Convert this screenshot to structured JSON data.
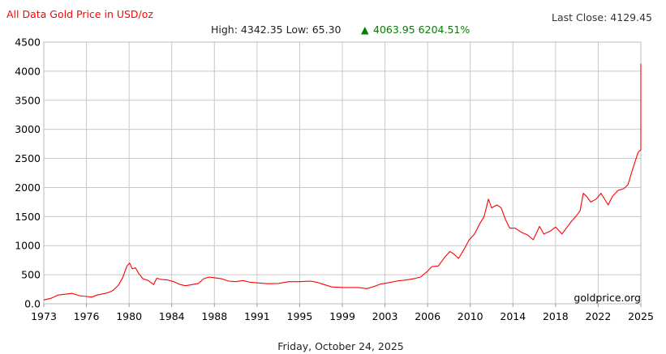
{
  "header": {
    "title": "All Data Gold Price in USD/oz",
    "last_close": "Last Close: 4129.45",
    "high_low": "High: 4342.35 Low: 65.30",
    "change_arrow": "▲",
    "change": "4063.95 6204.51%",
    "title_color": "#ff0000",
    "change_color": "#008000"
  },
  "footer": {
    "date": "Friday, October 24, 2025",
    "watermark": "goldprice.org"
  },
  "chart_data": {
    "type": "line",
    "title": "All Data Gold Price in USD/oz",
    "xlabel": "",
    "ylabel": "",
    "x_tick_labels": [
      "1973",
      "1976",
      "1980",
      "1984",
      "1988",
      "1991",
      "1995",
      "1999",
      "2003",
      "2006",
      "2010",
      "2014",
      "2018",
      "2022",
      "2025"
    ],
    "y_tick_labels": [
      "0.0",
      "500",
      "1000",
      "1500",
      "2000",
      "2500",
      "3000",
      "3500",
      "4000",
      "4500"
    ],
    "ylim": [
      0,
      4500
    ],
    "xlim": [
      1973,
      2025
    ],
    "grid": true,
    "series": [
      {
        "color": "#ff0000",
        "x": [
          1973.0,
          1973.5,
          1974.0,
          1974.5,
          1975.0,
          1975.5,
          1976.0,
          1976.5,
          1977.0,
          1977.5,
          1978.0,
          1978.5,
          1979.0,
          1979.4,
          1979.8,
          1980.05,
          1980.3,
          1980.6,
          1980.9,
          1981.3,
          1981.8,
          1982.3,
          1982.6,
          1983.0,
          1983.6,
          1984.2,
          1984.8,
          1985.3,
          1985.9,
          1986.5,
          1987.0,
          1987.5,
          1987.9,
          1988.5,
          1989.0,
          1989.5,
          1990.0,
          1990.5,
          1991.0,
          1992.0,
          1993.0,
          1994.0,
          1995.0,
          1996.0,
          1996.6,
          1997.3,
          1998.0,
          1999.0,
          1999.8,
          2000.5,
          2001.3,
          2002.0,
          2002.6,
          2003.2,
          2003.8,
          2004.5,
          2005.0,
          2005.5,
          2006.0,
          2006.4,
          2007.0,
          2007.6,
          2008.1,
          2008.5,
          2008.9,
          2009.4,
          2009.9,
          2010.4,
          2010.9,
          2011.3,
          2011.7,
          2012.0,
          2012.5,
          2012.9,
          2013.3,
          2013.7,
          2014.2,
          2014.8,
          2015.4,
          2015.9,
          2016.5,
          2016.9,
          2017.5,
          2018.0,
          2018.6,
          2019.0,
          2019.5,
          2019.9,
          2020.3,
          2020.6,
          2020.9,
          2021.3,
          2021.8,
          2022.2,
          2022.7,
          2023.0,
          2023.4,
          2023.8,
          2024.1,
          2024.4,
          2024.8,
          2025.0,
          2025.3,
          2025.6,
          2025.8,
          2025.9,
          2026.0
        ],
        "values": [
          65,
          95,
          150,
          165,
          180,
          140,
          125,
          115,
          150,
          170,
          190,
          230,
          320,
          450,
          650,
          700,
          600,
          620,
          520,
          430,
          400,
          330,
          440,
          420,
          410,
          380,
          330,
          310,
          330,
          350,
          430,
          460,
          450,
          430,
          390,
          380,
          400,
          370,
          360,
          345,
          350,
          380,
          380,
          390,
          370,
          330,
          290,
          280,
          280,
          280,
          260,
          300,
          340,
          360,
          390,
          410,
          430,
          460,
          560,
          640,
          650,
          800,
          900,
          850,
          780,
          930,
          1100,
          1200,
          1380,
          1500,
          1800,
          1650,
          1700,
          1650,
          1450,
          1300,
          1300,
          1230,
          1180,
          1100,
          1330,
          1200,
          1250,
          1320,
          1200,
          1300,
          1420,
          1500,
          1600,
          1900,
          1850,
          1750,
          1800,
          1900,
          1700,
          1850,
          1950,
          1980,
          2050,
          2300,
          2600,
          2650,
          3000,
          3300,
          3400,
          3700,
          4130
        ]
      }
    ]
  }
}
